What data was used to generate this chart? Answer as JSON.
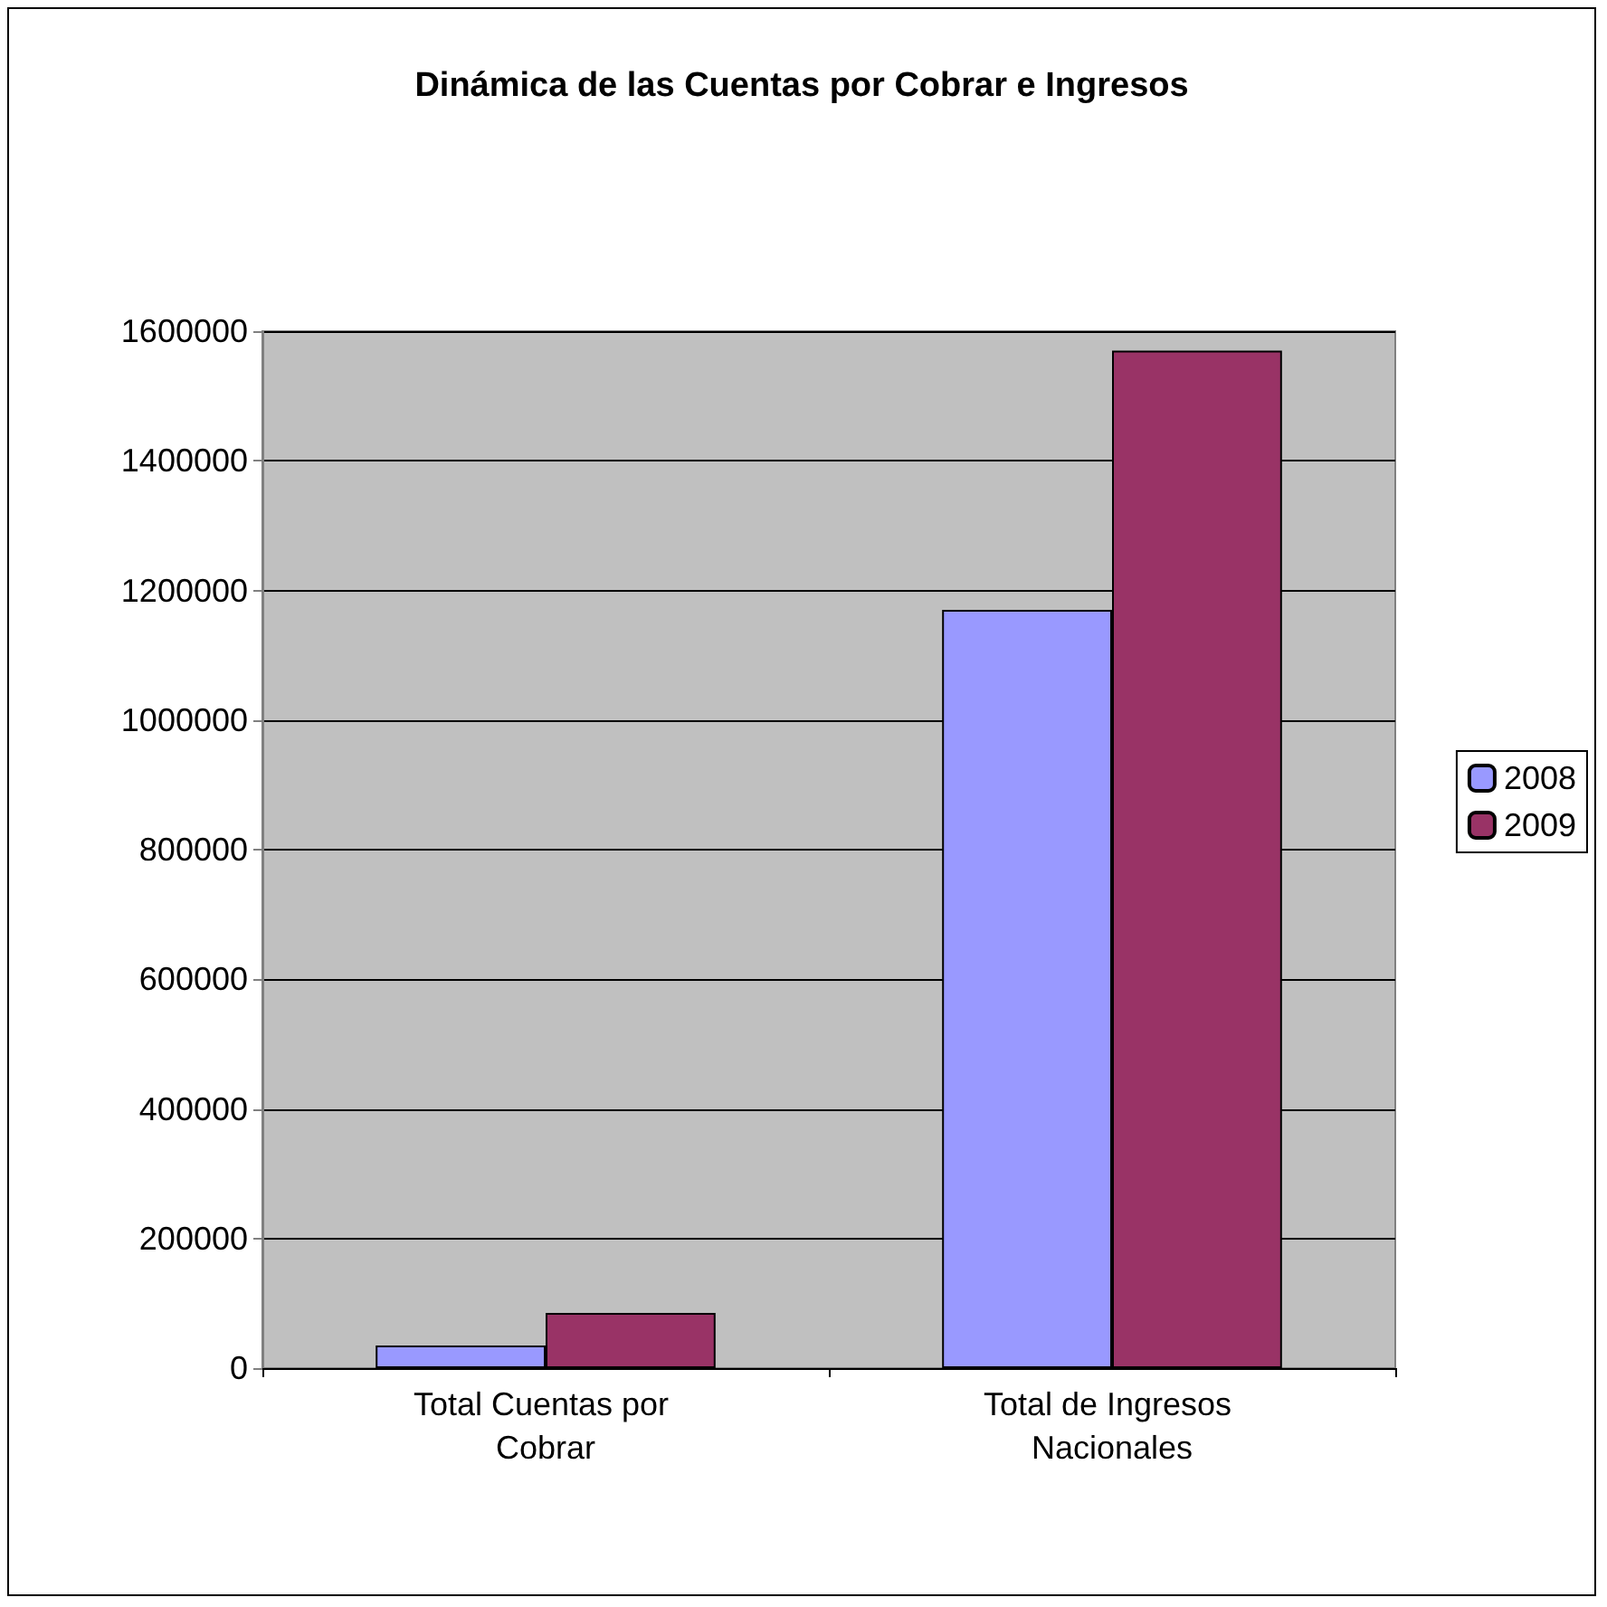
{
  "chart_data": {
    "type": "bar",
    "title": "Dinámica de las Cuentas por Cobrar e Ingresos",
    "categories": [
      "Total Cuentas por Cobrar",
      "Total de Ingresos Nacionales"
    ],
    "series": [
      {
        "name": "2008",
        "color": "#9999ff",
        "values": [
          35000,
          1170000
        ]
      },
      {
        "name": "2009",
        "color": "#993366",
        "values": [
          85000,
          1570000
        ]
      }
    ],
    "ylim": [
      0,
      1600000
    ],
    "yticks": [
      0,
      200000,
      400000,
      600000,
      800000,
      1000000,
      1200000,
      1400000,
      1600000
    ],
    "grid": "y",
    "legend": "right"
  }
}
